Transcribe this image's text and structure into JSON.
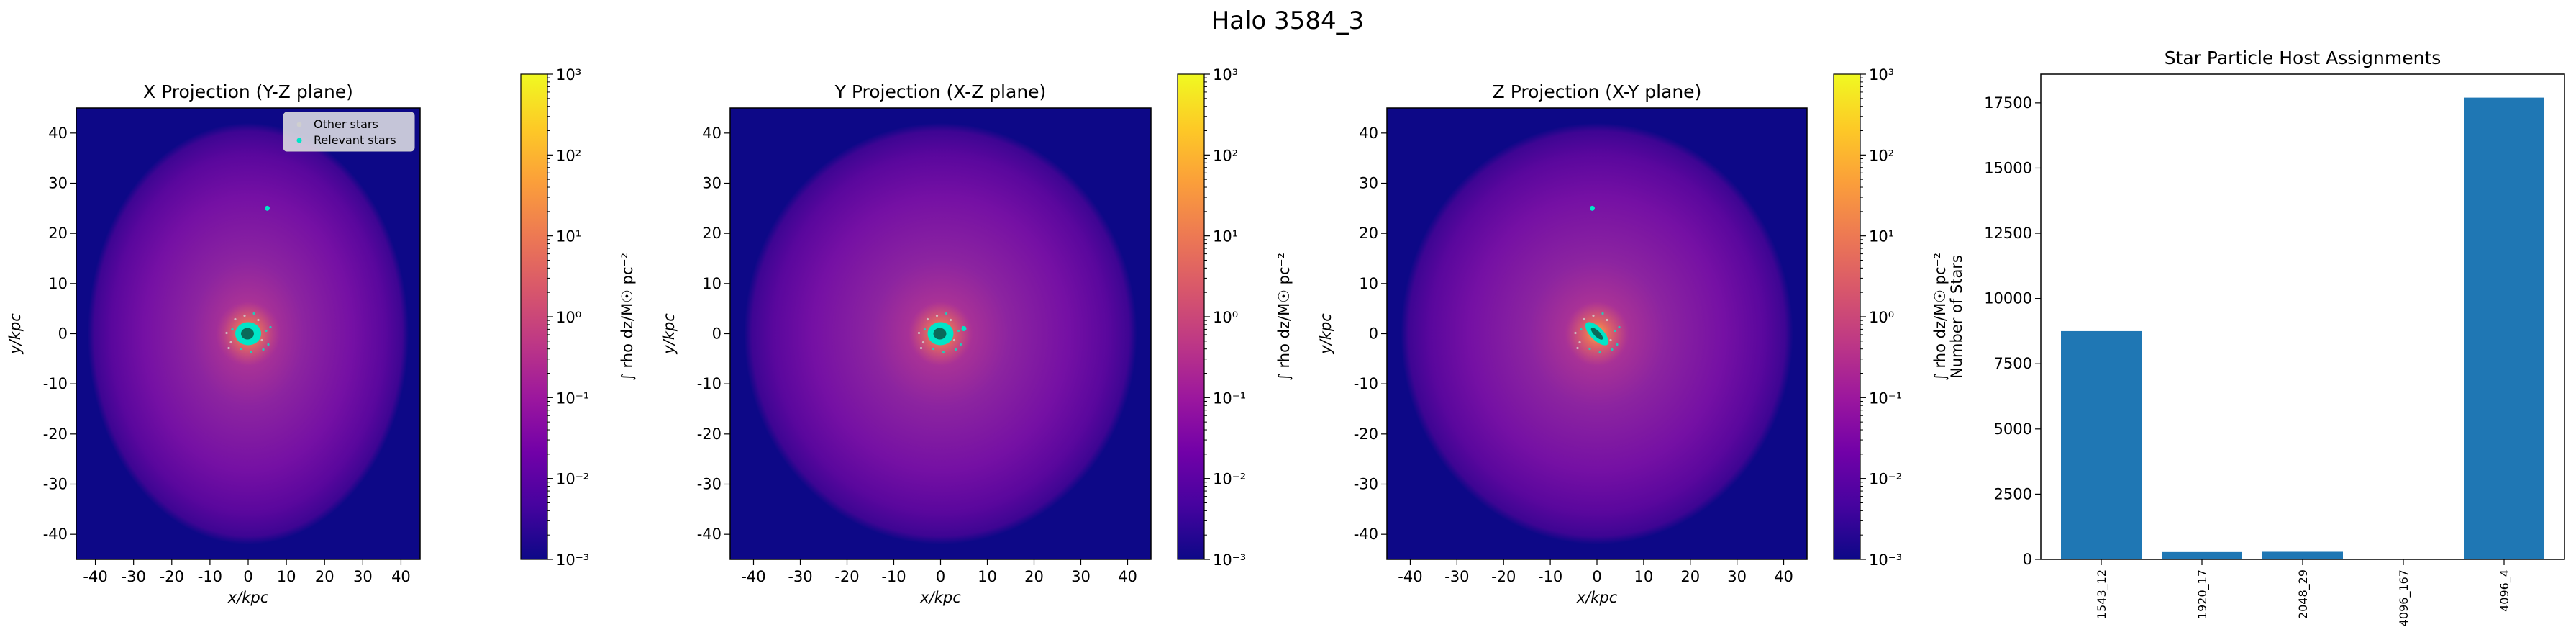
{
  "figure": {
    "suptitle": "Halo 3584_3"
  },
  "colors": {
    "cmap": [
      "#0d0887",
      "#46039f",
      "#7201a8",
      "#9c179e",
      "#bd3786",
      "#d8576b",
      "#ed7953",
      "#fb9f3a",
      "#fdca26",
      "#f0f921"
    ],
    "stars_other": "#cfcfcf",
    "stars_relevant": "#00e5c8",
    "bar": "#1f77b4"
  },
  "legend": {
    "entries": [
      "Other stars",
      "Relevant stars"
    ],
    "placement": "upper-right"
  },
  "chart_data": [
    {
      "type": "heatmap",
      "title": "X Projection (Y-Z plane)",
      "xlabel": "x/kpc",
      "ylabel": "y/kpc",
      "xlim": [
        -45,
        45
      ],
      "ylim": [
        -45,
        45
      ],
      "xticks": [
        -40,
        -30,
        -20,
        -10,
        0,
        10,
        20,
        30,
        40
      ],
      "yticks": [
        -40,
        -30,
        -20,
        -10,
        0,
        10,
        20,
        30,
        40
      ],
      "colorbar": {
        "label": "∫ rho dz/M☉ pc⁻²",
        "scale": "log",
        "range": [
          0.001,
          1000
        ],
        "ticks": [
          "10⁻³",
          "10⁻²",
          "10⁻¹",
          "10⁰",
          "10¹",
          "10²",
          "10³"
        ]
      },
      "relevant_stars_centre": [
        0,
        0
      ],
      "relevant_stars_orientation": "blob",
      "other_star_clumps": [
        [
          5,
          25
        ]
      ],
      "legend": true
    },
    {
      "type": "heatmap",
      "title": "Y Projection (X-Z plane)",
      "xlabel": "x/kpc",
      "ylabel": "y/kpc",
      "xlim": [
        -45,
        45
      ],
      "ylim": [
        -45,
        45
      ],
      "xticks": [
        -40,
        -30,
        -20,
        -10,
        0,
        10,
        20,
        30,
        40
      ],
      "yticks": [
        -40,
        -30,
        -20,
        -10,
        0,
        10,
        20,
        30,
        40
      ],
      "colorbar": {
        "label": "∫ rho dz/M☉ pc⁻²",
        "scale": "log",
        "range": [
          0.001,
          1000
        ],
        "ticks": [
          "10⁻³",
          "10⁻²",
          "10⁻¹",
          "10⁰",
          "10¹",
          "10²",
          "10³"
        ]
      },
      "relevant_stars_centre": [
        0,
        0
      ],
      "relevant_stars_orientation": "blob",
      "other_star_clumps": [
        [
          5,
          1
        ]
      ],
      "legend": false
    },
    {
      "type": "heatmap",
      "title": "Z Projection (X-Y plane)",
      "xlabel": "x/kpc",
      "ylabel": "y/kpc",
      "xlim": [
        -45,
        45
      ],
      "ylim": [
        -45,
        45
      ],
      "xticks": [
        -40,
        -30,
        -20,
        -10,
        0,
        10,
        20,
        30,
        40
      ],
      "yticks": [
        -40,
        -30,
        -20,
        -10,
        0,
        10,
        20,
        30,
        40
      ],
      "colorbar": {
        "label": "∫ rho dz/M☉ pc⁻²",
        "scale": "log",
        "range": [
          0.001,
          1000
        ],
        "ticks": [
          "10⁻³",
          "10⁻²",
          "10⁻¹",
          "10⁰",
          "10¹",
          "10²",
          "10³"
        ]
      },
      "relevant_stars_centre": [
        0,
        0
      ],
      "relevant_stars_orientation": "diagonal",
      "other_star_clumps": [
        [
          -1,
          25
        ]
      ],
      "legend": false
    },
    {
      "type": "bar",
      "title": "Star Particle Host Assignments",
      "ylabel": "Number of Stars",
      "categories": [
        "1543_12",
        "1920_17",
        "2048_29",
        "4096_167",
        "4096_4"
      ],
      "values": [
        8750,
        280,
        290,
        10,
        17700
      ],
      "ylim": [
        0,
        18600
      ],
      "yticks": [
        0,
        2500,
        5000,
        7500,
        10000,
        12500,
        15000,
        17500
      ]
    }
  ]
}
